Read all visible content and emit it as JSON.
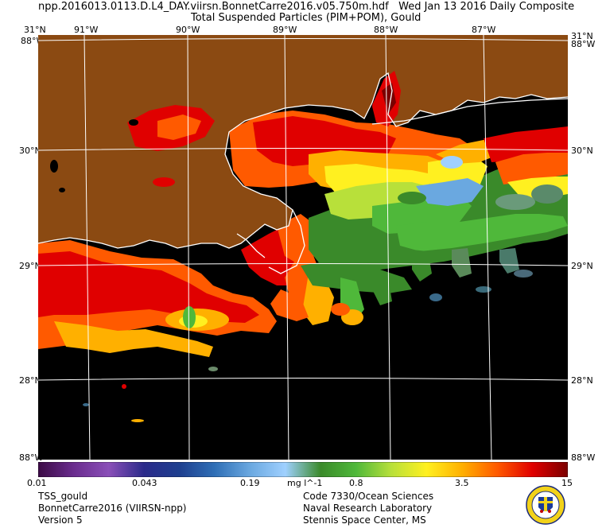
{
  "header": {
    "file_line": "npp.2016013.0113.D.L4_DAY.viirsn.BonnetCarre2016.v05.750m.hdf",
    "date_line": "Wed Jan 13 2016 Daily Composite",
    "product_line": "Total Suspended Particles (PIM+POM), Gould"
  },
  "map": {
    "lon_labels_top": [
      "31°N",
      "91°W",
      "90°W",
      "89°W",
      "88°W",
      "87°W",
      "31°N"
    ],
    "lon_labels_top_extra": [
      "88°W",
      "88°W"
    ],
    "lat_labels_left": [
      "30°N",
      "29°N",
      "28°N"
    ],
    "lat_labels_right": [
      "30°N",
      "29°N",
      "28°N"
    ],
    "corner_bottom_left": "88°W",
    "corner_bottom_right": "88°W",
    "colors": {
      "land": "#8b4a12",
      "no_data": "#000000",
      "coastline": "#ffffff",
      "grid": "#ffffff"
    }
  },
  "colorbar": {
    "tick_labels": [
      "0.01",
      "0.043",
      "0.19",
      "mg l^-1",
      "0.8",
      "3.5",
      "15"
    ],
    "colors": [
      "#3b0a45",
      "#6a2c8e",
      "#8a4fb8",
      "#2a2a8a",
      "#1e3f8f",
      "#2f6fb6",
      "#6aa8e0",
      "#9fd0ff",
      "#3a8a2a",
      "#4fb83a",
      "#b8e03a",
      "#fff020",
      "#ffb000",
      "#ff5a00",
      "#e00000",
      "#7a0000"
    ]
  },
  "footer": {
    "left": [
      "TSS_gould",
      "BonnetCarre2016 (VIIRSN-npp)",
      "Version 5"
    ],
    "right": [
      "Code 7330/Ocean Sciences",
      "Naval Research Laboratory",
      "Stennis Space Center, MS"
    ]
  }
}
